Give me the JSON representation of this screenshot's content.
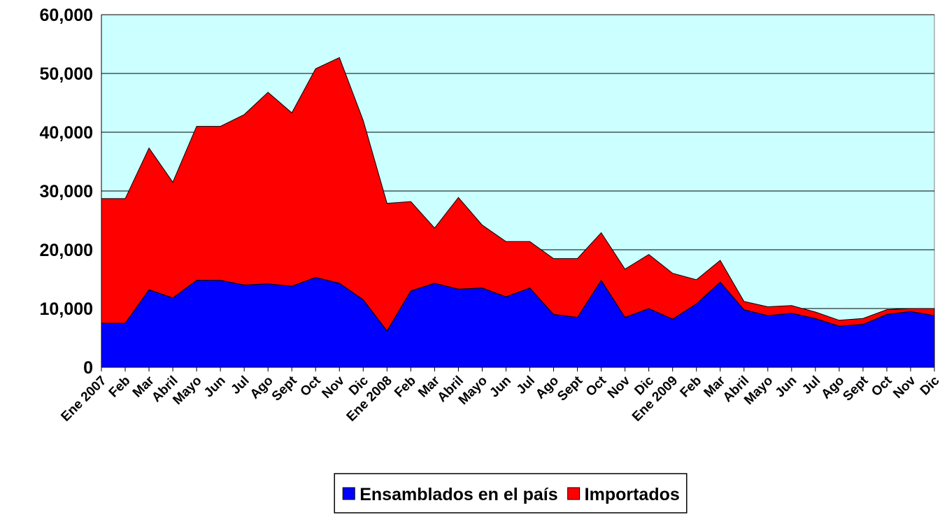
{
  "chart_data": {
    "type": "stacked_area",
    "categories": [
      "Ene 2007",
      "Feb",
      "Mar",
      "Abril",
      "Mayo",
      "Jun",
      "Jul",
      "Ago",
      "Sept",
      "Oct",
      "Nov",
      "Dic",
      "Ene 2008",
      "Feb",
      "Mar",
      "Abril",
      "Mayo",
      "Jun",
      "Jul",
      "Ago",
      "Sept",
      "Oct",
      "Nov",
      "Dic",
      "Ene 2009",
      "Feb",
      "Mar",
      "Abril",
      "Mayo",
      "Jun",
      "Jul",
      "Ago",
      "Sept",
      "Oct",
      "Nov",
      "Dic"
    ],
    "series": [
      {
        "name": "Ensamblados en el país",
        "color": "#0000ff",
        "values": [
          7500,
          7500,
          13200,
          11800,
          14800,
          14800,
          14000,
          14200,
          13800,
          15300,
          14300,
          11500,
          6200,
          13000,
          14300,
          13300,
          13500,
          12000,
          13500,
          9000,
          8500,
          14800,
          8500,
          10000,
          8200,
          10800,
          14500,
          9800,
          8800,
          9200,
          8300,
          7000,
          7300,
          9000,
          9500,
          8800
        ]
      },
      {
        "name": "Importados",
        "color": "#ff0000",
        "values": [
          21200,
          21200,
          24100,
          19700,
          26200,
          26200,
          29000,
          32600,
          29500,
          35500,
          38400,
          30500,
          21700,
          15200,
          9400,
          15600,
          10700,
          9400,
          7900,
          9500,
          10000,
          8100,
          8200,
          9200,
          7800,
          4100,
          3700,
          1400,
          1500,
          1300,
          1100,
          1000,
          1000,
          800,
          500,
          1200
        ]
      }
    ],
    "ylim": [
      0,
      60000
    ],
    "yticks": [
      0,
      {
        "value": 10000,
        "label": "10,000"
      },
      {
        "value": 20000,
        "label": "20,000"
      },
      {
        "value": 30000,
        "label": "30,000"
      },
      {
        "value": 40000,
        "label": "40,000"
      },
      {
        "value": 50000,
        "label": "50,000"
      },
      {
        "value": 60000,
        "label": "60,000"
      }
    ],
    "grid": true,
    "background": "#ccffff",
    "legend": "bottom"
  }
}
